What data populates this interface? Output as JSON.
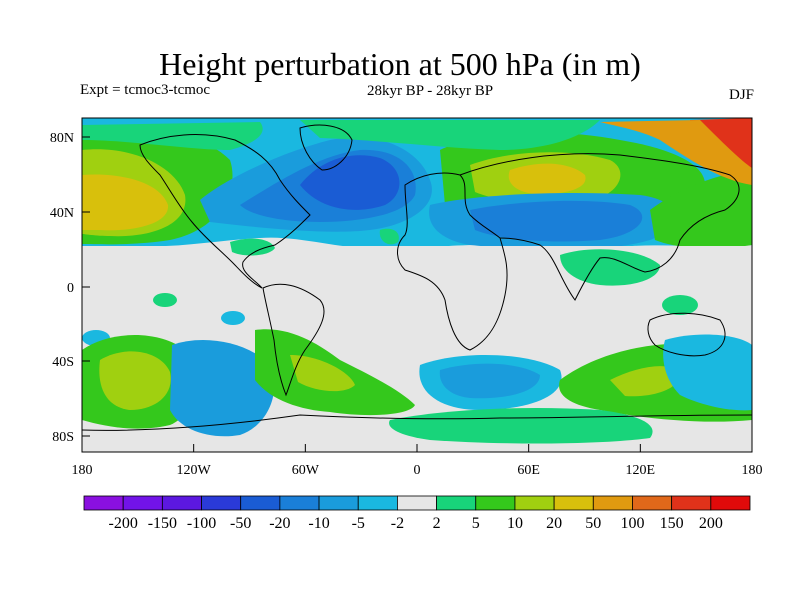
{
  "title": "Height perturbation at 500 hPa (in m)",
  "subtitle_left": "Expt = tcmoc3-tcmoc",
  "subtitle_center": "28kyr BP - 28kyr BP",
  "subtitle_right": "DJF",
  "map": {
    "lat_ticks": [
      "80N",
      "40N",
      "0",
      "40S",
      "80S"
    ],
    "lon_ticks": [
      "180",
      "120W",
      "60W",
      "0",
      "60E",
      "120E",
      "180"
    ],
    "background_color": "#e6e6e6"
  },
  "colorbar": {
    "labels": [
      "-200",
      "-150",
      "-100",
      "-50",
      "-20",
      "-10",
      "-5",
      "-2",
      "2",
      "5",
      "10",
      "20",
      "50",
      "100",
      "150",
      "200"
    ],
    "colors": [
      "#8a10e0",
      "#7213e8",
      "#5c18e0",
      "#2a3ad8",
      "#1a5cd4",
      "#1a7fd8",
      "#1a9cdc",
      "#1ab8e0",
      "#e6e6e6",
      "#18d47a",
      "#34c81c",
      "#a0d010",
      "#d8c00c",
      "#e09a10",
      "#e0681a",
      "#e0321a",
      "#e00a0a"
    ]
  }
}
